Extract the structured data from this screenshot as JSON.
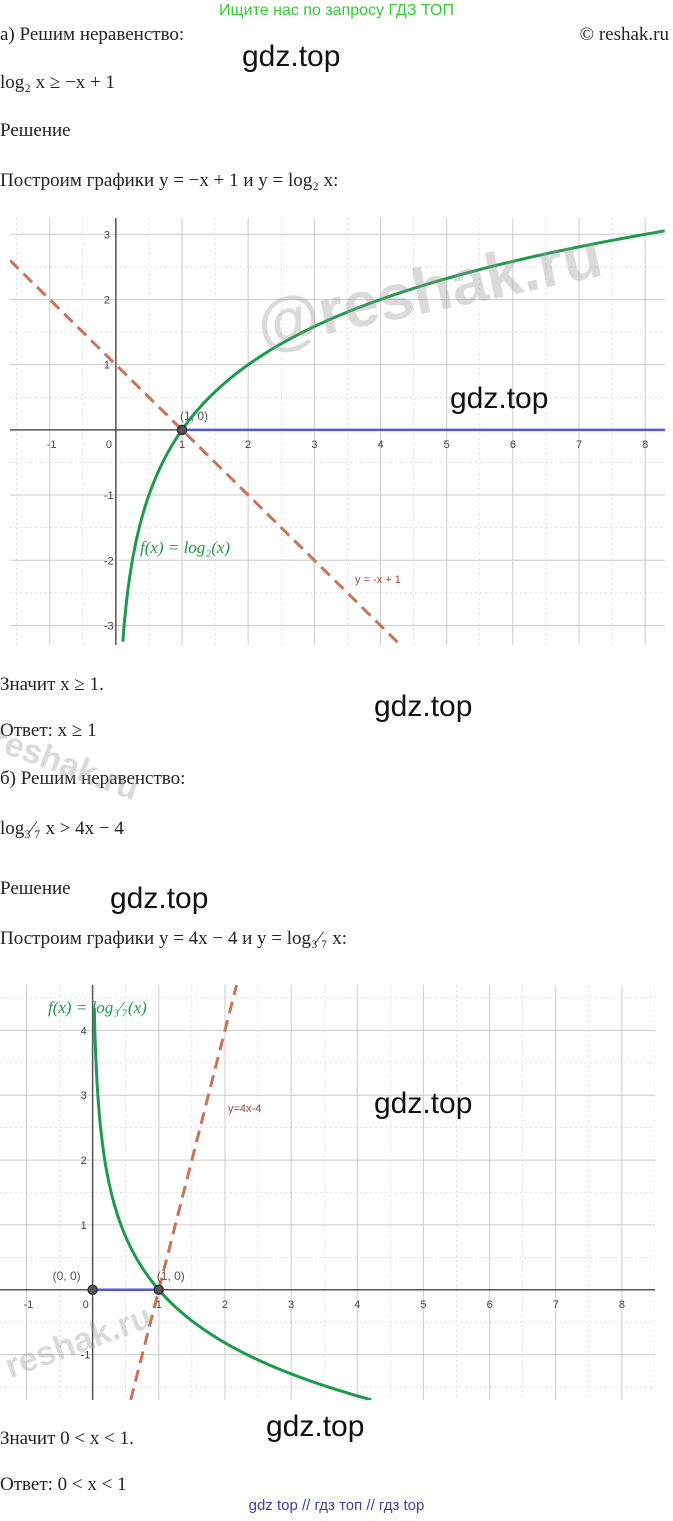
{
  "ad_banner": "Ищите нас по запросу ГДЗ ТОП",
  "copyright": "© reshak.ru",
  "watermark": "gdz.top",
  "watermark_big": "@reshak.ru",
  "watermark_stamp": "reshak.ru",
  "part_a": {
    "heading": "а) Решим неравенство:",
    "inequality": "log₂ x ≥ −x + 1",
    "solution_label": "Решение",
    "build_text": "Построим графики y = −x + 1  и y = log₂ x:",
    "conclusion": "Значит x ≥ 1.",
    "answer": "Ответ: x ≥ 1"
  },
  "part_b": {
    "heading": "б) Решим неравенство:",
    "inequality": "log₃⁄₇ x > 4x − 4",
    "solution_label": "Решение",
    "build_text": "Построим графики y = 4x − 4  и y = log₃⁄₇ x:",
    "conclusion": "Значит 0 < x < 1.",
    "answer": "Ответ:  0 < x < 1"
  },
  "footer": "gdz top  //  гдз топ  //  гдз top",
  "colors": {
    "curve": "#1e9a4e",
    "line": "#c8735a",
    "solution": "#5555dd",
    "grid": "#cccccc",
    "ad": "#33cc33"
  },
  "chart_data": [
    {
      "type": "line",
      "xlim": [
        -1.6,
        8.3
      ],
      "ylim": [
        -3.3,
        3.25
      ],
      "x_ticks": [
        "-1",
        "0",
        "1",
        "2",
        "3",
        "4",
        "5",
        "6",
        "7",
        "8"
      ],
      "y_ticks": [
        "-3",
        "-2",
        "-1",
        "1",
        "2",
        "3"
      ],
      "grid": true,
      "series": [
        {
          "name": "f(x) = log₂(x)",
          "function": "log2(x)",
          "style": "solid",
          "color": "#1e9a4e"
        },
        {
          "name": "y = -x + 1",
          "function": "-x+1",
          "style": "dashed",
          "color": "#c8735a"
        },
        {
          "name": "",
          "function": "solution ray y=0, x≥1",
          "style": "solid",
          "color": "#5555dd"
        }
      ],
      "points": [
        {
          "label": "(1, 0)",
          "x": 1,
          "y": 0
        }
      ]
    },
    {
      "type": "line",
      "xlim": [
        -1.4,
        8.5
      ],
      "ylim": [
        -1.7,
        4.7
      ],
      "x_ticks": [
        "-1",
        "0",
        "1",
        "2",
        "3",
        "4",
        "5",
        "6",
        "7",
        "8"
      ],
      "y_ticks": [
        "-1",
        "1",
        "2",
        "3",
        "4"
      ],
      "grid": true,
      "series": [
        {
          "name": "f(x) = log₃⁄₇(x)",
          "function": "log_{3/7}(x)",
          "style": "solid",
          "color": "#1e9a4e"
        },
        {
          "name": "y=4x-4",
          "function": "4x-4",
          "style": "dashed",
          "color": "#c8735a"
        },
        {
          "name": "",
          "function": "solution segment y=0, 0<x<1",
          "style": "solid",
          "color": "#5555dd"
        }
      ],
      "points": [
        {
          "label": "(0, 0)",
          "x": 0,
          "y": 0
        },
        {
          "label": "(1, 0)",
          "x": 1,
          "y": 0
        }
      ]
    }
  ]
}
